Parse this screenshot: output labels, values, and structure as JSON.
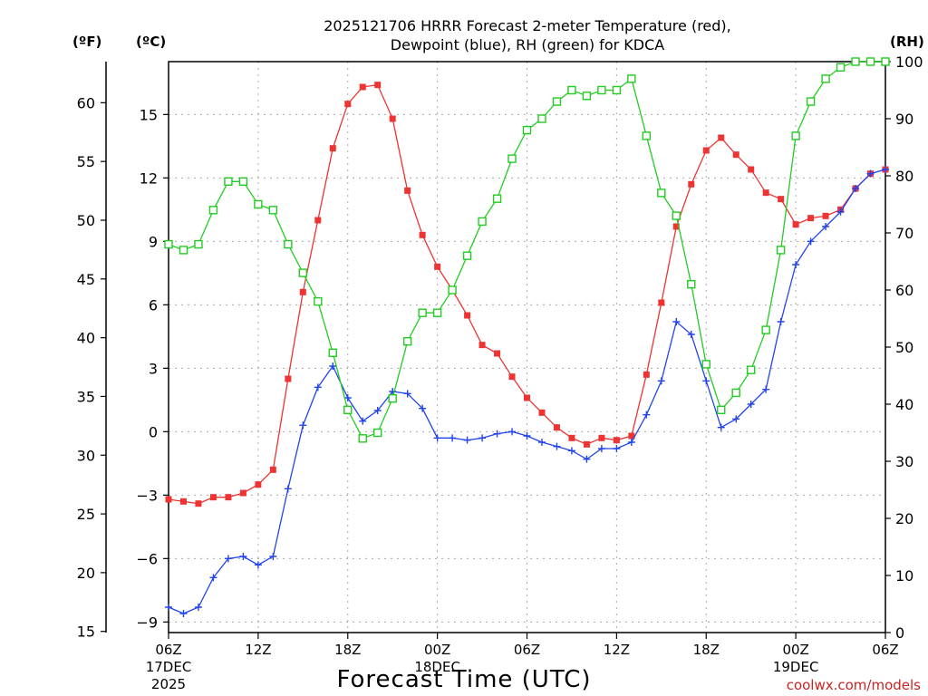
{
  "chart_data": {
    "type": "line",
    "title_line1": "2025121706 HRRR Forecast 2-meter Temperature (red),",
    "title_line2": "Dewpoint (blue), RH (green) for KDCA",
    "xlabel": "Forecast Time (UTC)",
    "unit_f": "(ºF)",
    "unit_c": "(ºC)",
    "unit_rh": "(RH)",
    "watermark": "coolwx.com/models",
    "x_range_hours": [
      0,
      48
    ],
    "c_range": [
      -9.5,
      17.5
    ],
    "rh_range": [
      0,
      100
    ],
    "c_ticks": [
      -9,
      -6,
      -3,
      0,
      3,
      6,
      9,
      12,
      15
    ],
    "c_tick_labels": [
      "−9",
      "−6",
      "−3",
      "0",
      "3",
      "6",
      "9",
      "12",
      "15"
    ],
    "f_ticks": [
      15,
      20,
      25,
      30,
      35,
      40,
      45,
      50,
      55,
      60
    ],
    "rh_ticks": [
      0,
      10,
      20,
      30,
      40,
      50,
      60,
      70,
      80,
      90,
      100
    ],
    "x_ticks": [
      {
        "hour": 0,
        "label": "06Z",
        "date1": "17DEC",
        "date2": "2025"
      },
      {
        "hour": 6,
        "label": "12Z"
      },
      {
        "hour": 12,
        "label": "18Z"
      },
      {
        "hour": 18,
        "label": "00Z",
        "date1": "18DEC"
      },
      {
        "hour": 24,
        "label": "06Z"
      },
      {
        "hour": 30,
        "label": "12Z"
      },
      {
        "hour": 36,
        "label": "18Z"
      },
      {
        "hour": 42,
        "label": "00Z",
        "date1": "19DEC"
      },
      {
        "hour": 48,
        "label": "06Z"
      }
    ],
    "series": [
      {
        "name": "Temperature",
        "color": "#ee3333",
        "marker": "filled-square",
        "axis": "c",
        "values": [
          -3.2,
          -3.3,
          -3.4,
          -3.1,
          -3.1,
          -2.9,
          -2.5,
          -1.8,
          2.5,
          6.6,
          10.0,
          13.4,
          15.5,
          16.3,
          16.4,
          14.8,
          11.4,
          9.3,
          7.8,
          6.7,
          5.5,
          4.1,
          3.7,
          2.6,
          1.6,
          0.9,
          0.2,
          -0.3,
          -0.6,
          -0.3,
          -0.4,
          -0.2,
          2.7,
          6.1,
          9.7,
          11.7,
          13.3,
          13.9,
          13.1,
          12.4,
          11.3,
          11.0,
          9.8,
          10.1,
          10.2,
          10.5,
          11.5,
          12.2,
          12.4
        ]
      },
      {
        "name": "Dewpoint",
        "color": "#2244ee",
        "marker": "plus",
        "axis": "c",
        "values": [
          -8.3,
          -8.6,
          -8.3,
          -6.9,
          -6.0,
          -5.9,
          -6.3,
          -5.9,
          -2.7,
          0.3,
          2.1,
          3.1,
          1.6,
          0.5,
          1.0,
          1.9,
          1.8,
          1.1,
          -0.3,
          -0.3,
          -0.4,
          -0.3,
          -0.1,
          0.0,
          -0.2,
          -0.5,
          -0.7,
          -0.9,
          -1.3,
          -0.8,
          -0.8,
          -0.5,
          0.8,
          2.4,
          5.2,
          4.6,
          2.4,
          0.2,
          0.6,
          1.3,
          2.0,
          5.2,
          7.9,
          9.0,
          9.7,
          10.4,
          11.5,
          12.2,
          12.4
        ]
      },
      {
        "name": "RH",
        "color": "#22cc22",
        "marker": "open-square",
        "axis": "rh",
        "values": [
          68,
          67,
          68,
          74,
          79,
          79,
          75,
          74,
          68,
          63,
          58,
          49,
          39,
          34,
          35,
          41,
          51,
          56,
          56,
          60,
          66,
          72,
          76,
          83,
          88,
          90,
          93,
          95,
          94,
          95,
          95,
          97,
          87,
          77,
          73,
          61,
          47,
          39,
          42,
          46,
          53,
          67,
          87,
          93,
          97,
          99,
          100,
          100,
          100
        ]
      }
    ]
  }
}
